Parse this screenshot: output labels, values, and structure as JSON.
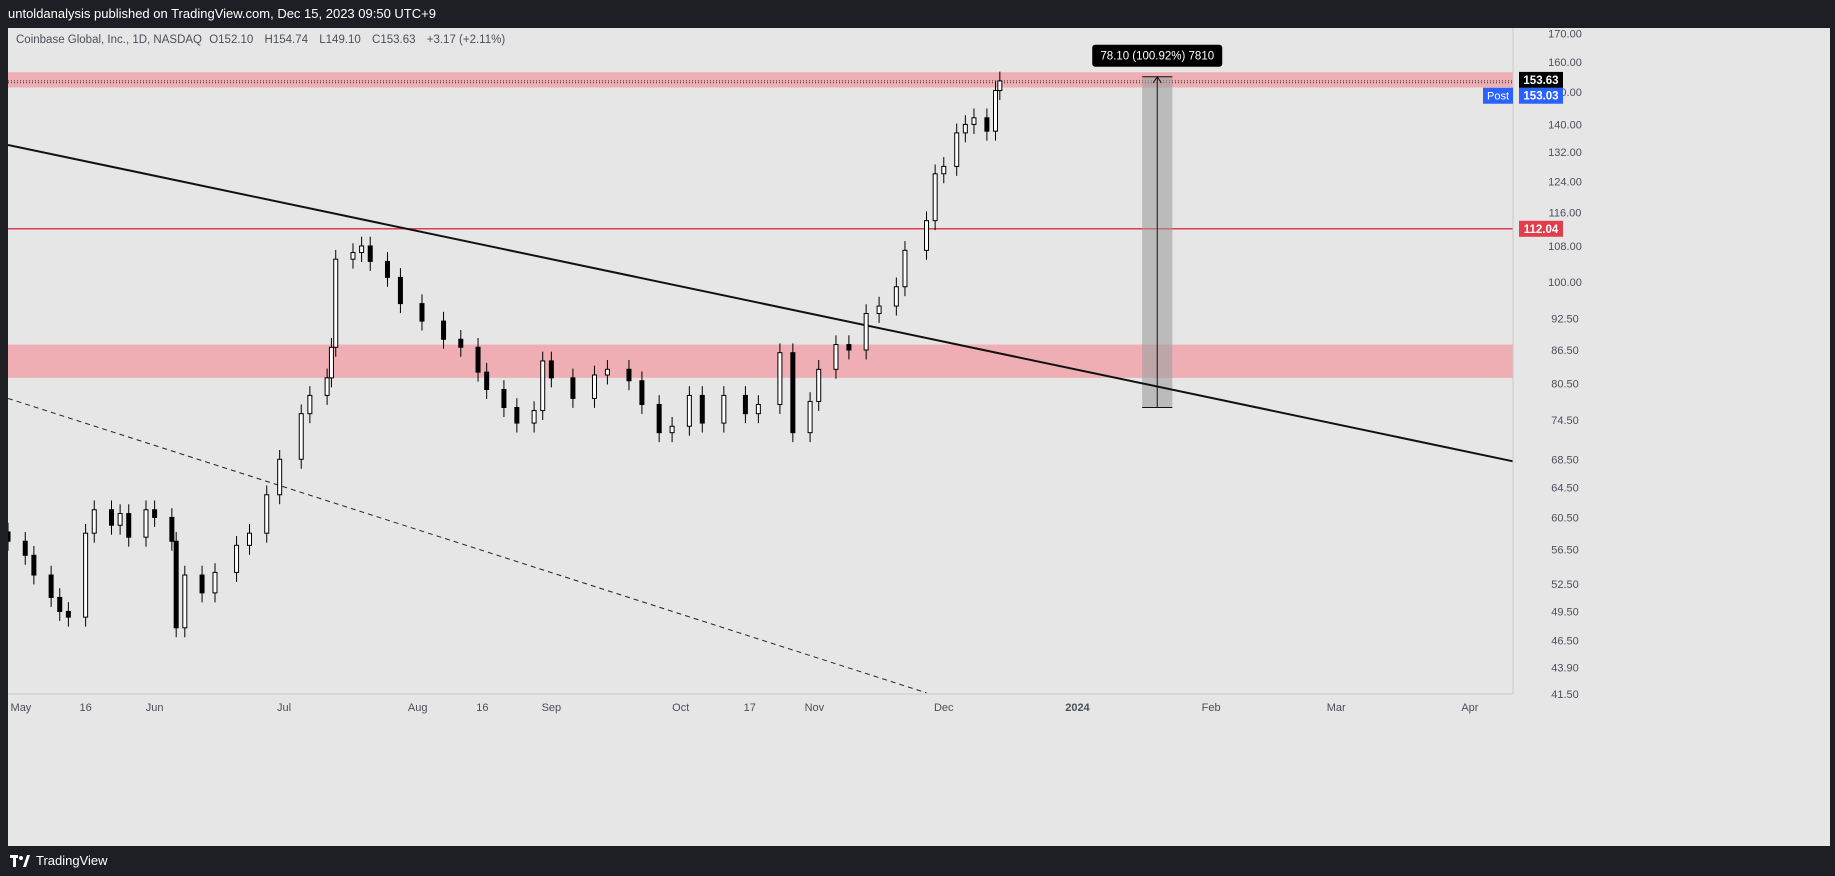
{
  "header": {
    "publisher_text": "untoldanalysis published on TradingView.com, Dec 15, 2023 09:50 UTC+9"
  },
  "symbol": {
    "name": "Coinbase Global, Inc., 1D, NASDAQ",
    "open_label": "O",
    "open": "152.10",
    "high_label": "H",
    "high": "154.74",
    "low_label": "L",
    "low": "149.10",
    "close_label": "C",
    "close": "153.63",
    "change": "+3.17 (+2.11%)"
  },
  "footer": {
    "brand": "TradingView"
  },
  "colors": {
    "background": "#e6e6e6",
    "zone_fill": "#eea7ae",
    "resistance_line": "#e03e4d",
    "trendline": "#111111",
    "candle_up": "#ffffff",
    "candle_down": "#000000",
    "post_badge": "#2962ff"
  },
  "chart_data": {
    "type": "candlestick",
    "y_axis": {
      "scale": "log",
      "range": [
        41.5,
        172.0
      ],
      "ticks": [
        "170.00",
        "160.00",
        "150.00",
        "140.00",
        "132.00",
        "124.00",
        "116.00",
        "108.00",
        "100.00",
        "92.50",
        "86.50",
        "80.50",
        "74.50",
        "68.50",
        "64.50",
        "60.50",
        "56.50",
        "52.50",
        "49.50",
        "46.50",
        "43.90",
        "41.50"
      ]
    },
    "x_axis": {
      "range": [
        "2023-04-28",
        "2024-04-11"
      ],
      "ticks": [
        {
          "date": "2023-05-01",
          "label": "May"
        },
        {
          "date": "2023-05-16",
          "label": "16"
        },
        {
          "date": "2023-06-01",
          "label": "Jun"
        },
        {
          "date": "2023-07-01",
          "label": "Jul"
        },
        {
          "date": "2023-08-01",
          "label": "Aug"
        },
        {
          "date": "2023-08-16",
          "label": "16"
        },
        {
          "date": "2023-09-01",
          "label": "Sep"
        },
        {
          "date": "2023-10-01",
          "label": "Oct"
        },
        {
          "date": "2023-10-17",
          "label": "17"
        },
        {
          "date": "2023-11-01",
          "label": "Nov"
        },
        {
          "date": "2023-12-01",
          "label": "Dec"
        },
        {
          "date": "2024-01-01",
          "label": "2024"
        },
        {
          "date": "2024-02-01",
          "label": "Feb"
        },
        {
          "date": "2024-03-01",
          "label": "Mar"
        },
        {
          "date": "2024-04-01",
          "label": "Apr"
        }
      ]
    },
    "closes": [
      {
        "date": "2023-04-28",
        "close": 57.5
      },
      {
        "date": "2023-05-02",
        "close": 55.8
      },
      {
        "date": "2023-05-04",
        "close": 53.5
      },
      {
        "date": "2023-05-08",
        "close": 51.0
      },
      {
        "date": "2023-05-10",
        "close": 49.5
      },
      {
        "date": "2023-05-12",
        "close": 48.9
      },
      {
        "date": "2023-05-16",
        "close": 58.5
      },
      {
        "date": "2023-05-18",
        "close": 61.5
      },
      {
        "date": "2023-05-22",
        "close": 59.5
      },
      {
        "date": "2023-05-24",
        "close": 61.0
      },
      {
        "date": "2023-05-26",
        "close": 58.0
      },
      {
        "date": "2023-05-30",
        "close": 61.5
      },
      {
        "date": "2023-06-01",
        "close": 60.5
      },
      {
        "date": "2023-06-05",
        "close": 57.5
      },
      {
        "date": "2023-06-06",
        "close": 47.8
      },
      {
        "date": "2023-06-08",
        "close": 53.5
      },
      {
        "date": "2023-06-12",
        "close": 51.5
      },
      {
        "date": "2023-06-15",
        "close": 53.8
      },
      {
        "date": "2023-06-20",
        "close": 57.0
      },
      {
        "date": "2023-06-23",
        "close": 58.5
      },
      {
        "date": "2023-06-27",
        "close": 63.5
      },
      {
        "date": "2023-06-30",
        "close": 68.5
      },
      {
        "date": "2023-07-05",
        "close": 75.5
      },
      {
        "date": "2023-07-07",
        "close": 78.5
      },
      {
        "date": "2023-07-11",
        "close": 81.5
      },
      {
        "date": "2023-07-12",
        "close": 87.0
      },
      {
        "date": "2023-07-13",
        "close": 105.0
      },
      {
        "date": "2023-07-17",
        "close": 106.5
      },
      {
        "date": "2023-07-19",
        "close": 108.0
      },
      {
        "date": "2023-07-21",
        "close": 104.5
      },
      {
        "date": "2023-07-25",
        "close": 101.0
      },
      {
        "date": "2023-07-28",
        "close": 95.5
      },
      {
        "date": "2023-08-02",
        "close": 92.0
      },
      {
        "date": "2023-08-07",
        "close": 88.5
      },
      {
        "date": "2023-08-11",
        "close": 87.0
      },
      {
        "date": "2023-08-15",
        "close": 82.5
      },
      {
        "date": "2023-08-17",
        "close": 79.5
      },
      {
        "date": "2023-08-21",
        "close": 76.5
      },
      {
        "date": "2023-08-24",
        "close": 74.0
      },
      {
        "date": "2023-08-28",
        "close": 76.0
      },
      {
        "date": "2023-08-30",
        "close": 84.5
      },
      {
        "date": "2023-09-01",
        "close": 81.5
      },
      {
        "date": "2023-09-06",
        "close": 78.0
      },
      {
        "date": "2023-09-11",
        "close": 82.0
      },
      {
        "date": "2023-09-14",
        "close": 83.0
      },
      {
        "date": "2023-09-19",
        "close": 81.0
      },
      {
        "date": "2023-09-22",
        "close": 77.0
      },
      {
        "date": "2023-09-26",
        "close": 72.5
      },
      {
        "date": "2023-09-29",
        "close": 73.5
      },
      {
        "date": "2023-10-03",
        "close": 78.5
      },
      {
        "date": "2023-10-06",
        "close": 74.0
      },
      {
        "date": "2023-10-11",
        "close": 78.5
      },
      {
        "date": "2023-10-16",
        "close": 75.5
      },
      {
        "date": "2023-10-19",
        "close": 77.0
      },
      {
        "date": "2023-10-24",
        "close": 86.0
      },
      {
        "date": "2023-10-27",
        "close": 72.5
      },
      {
        "date": "2023-10-31",
        "close": 77.5
      },
      {
        "date": "2023-11-02",
        "close": 83.0
      },
      {
        "date": "2023-11-06",
        "close": 87.5
      },
      {
        "date": "2023-11-09",
        "close": 86.5
      },
      {
        "date": "2023-11-13",
        "close": 93.5
      },
      {
        "date": "2023-11-16",
        "close": 95.0
      },
      {
        "date": "2023-11-20",
        "close": 99.0
      },
      {
        "date": "2023-11-22",
        "close": 107.0
      },
      {
        "date": "2023-11-27",
        "close": 114.0
      },
      {
        "date": "2023-11-29",
        "close": 126.0
      },
      {
        "date": "2023-12-01",
        "close": 128.0
      },
      {
        "date": "2023-12-04",
        "close": 137.5
      },
      {
        "date": "2023-12-06",
        "close": 140.0
      },
      {
        "date": "2023-12-08",
        "close": 142.0
      },
      {
        "date": "2023-12-11",
        "close": 138.0
      },
      {
        "date": "2023-12-13",
        "close": 150.5
      },
      {
        "date": "2023-12-14",
        "close": 153.63
      }
    ],
    "annotations": {
      "current_price": "153.63",
      "post_label": "Post",
      "post_price": "153.03",
      "resistance_value": 112.04,
      "resistance_label": "112.04",
      "upper_zone": [
        151.5,
        156.5
      ],
      "lower_zone": [
        81.5,
        87.5
      ],
      "measure_label": "78.10 (100.92%) 7810",
      "measure_range": {
        "from": 76.5,
        "to": 155.0,
        "start": "2024-01-16",
        "end": "2024-01-23"
      },
      "trendline": {
        "from": {
          "date": "2023-04-28",
          "value": 134.0
        },
        "to": {
          "date": "2024-04-11",
          "value": 68.2
        }
      },
      "dashed_line": {
        "from": {
          "date": "2023-04-28",
          "value": 78.0
        },
        "to": {
          "date": "2023-11-27",
          "value": 41.6
        }
      }
    }
  }
}
